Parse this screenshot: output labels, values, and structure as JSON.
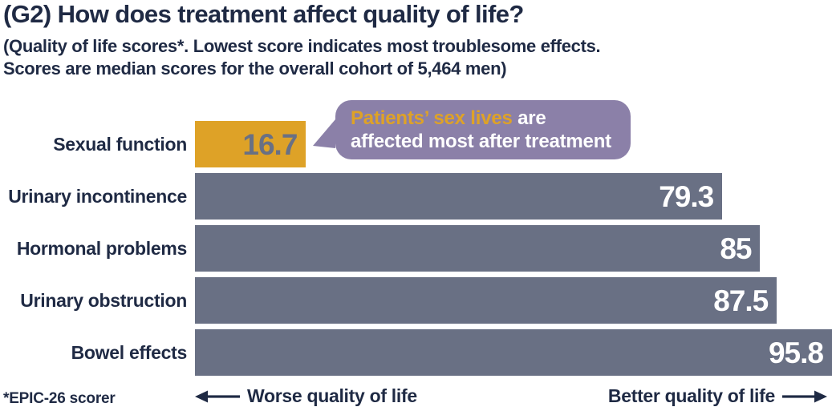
{
  "title": "(G2) How does treatment affect quality of life?",
  "subtitle": {
    "line1": "(Quality of life scores*. Lowest score indicates most troublesome effects.",
    "line2": "Scores are median scores for the overall cohort of 5,464 men)"
  },
  "callout": {
    "highlight": "Patients’ sex lives",
    "rest": " are",
    "line2": "affected most after treatment"
  },
  "footnote": "*EPIC-26 scorer",
  "axis_notes": {
    "worse": "Worse quality of life",
    "better": "Better quality of life"
  },
  "colors": {
    "navy": "#1f2a44",
    "slate": "#697084",
    "gold": "#dea227",
    "purple": "#8b80a8",
    "white": "#ffffff"
  },
  "chart_data": {
    "type": "bar",
    "orientation": "horizontal",
    "title": "(G2) How does treatment affect quality of life?",
    "categories": [
      "Sexual function",
      "Urinary incontinence",
      "Hormonal problems",
      "Urinary obstruction",
      "Bowel effects"
    ],
    "values": [
      16.7,
      79.3,
      85,
      87.5,
      95.8
    ],
    "value_labels": [
      "16.7",
      "79.3",
      "85",
      "87.5",
      "95.8"
    ],
    "highlight_index": 0,
    "xlim": [
      0,
      95.8
    ],
    "grid": false,
    "legend": false,
    "annotation": "Patients’ sex lives are affected most after treatment",
    "axis_direction_note": "left = worse quality of life, right = better quality of life"
  }
}
